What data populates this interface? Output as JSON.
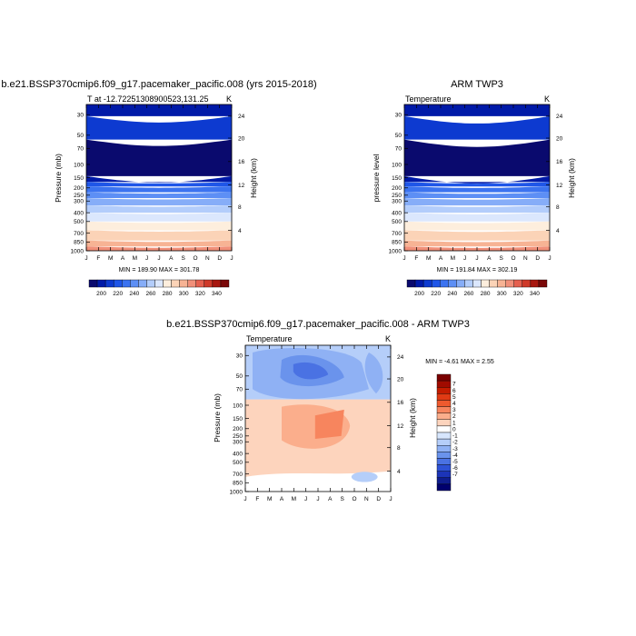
{
  "chart_data": [
    {
      "type": "heatmap",
      "title": "b.e21.BSSP370cmip6.f09_g17.pacemaker_pacific.008 (yrs 2015-2018)",
      "subtitle_left": "T at -12.72251308900523,131.25",
      "subtitle_right": "K",
      "x_ticklabels": [
        "J",
        "F",
        "M",
        "A",
        "M",
        "J",
        "J",
        "A",
        "S",
        "O",
        "N",
        "D",
        "J"
      ],
      "ylabel": "Pressure (mb)",
      "y_ticklabels": [
        "30",
        "50",
        "70",
        "100",
        "150",
        "200",
        "250",
        "300",
        "400",
        "500",
        "700",
        "850",
        "1000"
      ],
      "y2label": "Height (km)",
      "y2_ticklabels": [
        "24",
        "20",
        "16",
        "12",
        "8",
        "4"
      ],
      "minmax": "MIN = 189.90 MAX = 301.78",
      "colorbar_ticklabels": [
        "200",
        "220",
        "240",
        "260",
        "280",
        "300",
        "320",
        "340"
      ]
    },
    {
      "type": "heatmap",
      "title": "ARM TWP3",
      "subtitle_left": "Temperature",
      "subtitle_right": "K",
      "x_ticklabels": [
        "J",
        "F",
        "M",
        "A",
        "M",
        "J",
        "J",
        "A",
        "S",
        "O",
        "N",
        "D",
        "J"
      ],
      "ylabel": "pressure level",
      "y_ticklabels": [
        "30",
        "50",
        "70",
        "100",
        "150",
        "200",
        "250",
        "300",
        "400",
        "500",
        "700",
        "850",
        "1000"
      ],
      "y2label": "Height (km)",
      "y2_ticklabels": [
        "24",
        "20",
        "16",
        "12",
        "8",
        "4"
      ],
      "minmax": "MIN = 191.84 MAX = 302.19",
      "colorbar_ticklabels": [
        "200",
        "220",
        "240",
        "260",
        "280",
        "300",
        "320",
        "340"
      ]
    },
    {
      "type": "heatmap",
      "title": "b.e21.BSSP370cmip6.f09_g17.pacemaker_pacific.008 - ARM TWP3",
      "subtitle_left": "Temperature",
      "subtitle_right": "K",
      "x_ticklabels": [
        "J",
        "F",
        "M",
        "A",
        "M",
        "J",
        "J",
        "A",
        "S",
        "O",
        "N",
        "D",
        "J"
      ],
      "ylabel": "Pressure (mb)",
      "y_ticklabels": [
        "30",
        "50",
        "70",
        "100",
        "150",
        "200",
        "250",
        "300",
        "400",
        "500",
        "700",
        "850",
        "1000"
      ],
      "y2label": "Height (km)",
      "y2_ticklabels": [
        "24",
        "20",
        "16",
        "12",
        "8",
        "4"
      ],
      "minmax": "MIN =  -4.61 MAX =   2.55",
      "colorbar_ticklabels": [
        "7",
        "6",
        "5",
        "4",
        "3",
        "2",
        "1",
        "0",
        "-1",
        "-2",
        "-3",
        "-4",
        "-5",
        "-6",
        "-7"
      ]
    }
  ],
  "colors": {
    "temp_scale": [
      "#0a0a6e",
      "#001aa8",
      "#0d3ad0",
      "#1f56e8",
      "#3b73f0",
      "#5d8ff5",
      "#86adf8",
      "#b3cdfb",
      "#dbe7fd",
      "#fdeedd",
      "#fbd3b7",
      "#f7b394",
      "#f1907a",
      "#e5604f",
      "#cf3a2a",
      "#a81810",
      "#7a0808"
    ],
    "diff_scale": [
      "#7a0000",
      "#a00b00",
      "#c41c00",
      "#e03a14",
      "#ef5a2e",
      "#f7855e",
      "#fbae8c",
      "#fdd4bd",
      "#ffffff",
      "#d7e6fd",
      "#b5cef9",
      "#8fb1f4",
      "#6a93ec",
      "#4a72e3",
      "#2e52d6",
      "#1c34b8",
      "#0f1d8e",
      "#00006e"
    ]
  }
}
